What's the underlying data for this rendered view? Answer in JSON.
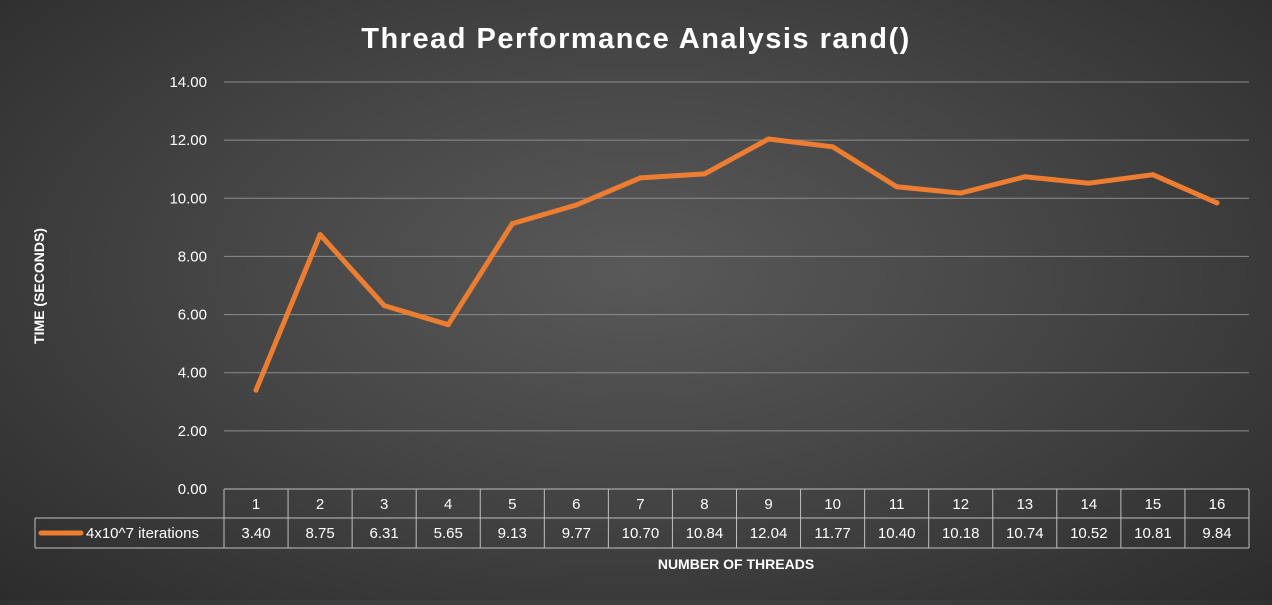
{
  "chart_data": {
    "type": "line",
    "title": "Thread Performance Analysis rand()",
    "xlabel": "NUMBER OF THREADS",
    "ylabel": "TIME (SECONDS)",
    "categories": [
      "1",
      "2",
      "3",
      "4",
      "5",
      "6",
      "7",
      "8",
      "9",
      "10",
      "11",
      "12",
      "13",
      "14",
      "15",
      "16"
    ],
    "series": [
      {
        "name": "4x10^7 iterations",
        "values": [
          3.4,
          8.75,
          6.31,
          5.65,
          9.13,
          9.77,
          10.7,
          10.84,
          12.04,
          11.77,
          10.4,
          10.18,
          10.74,
          10.52,
          10.81,
          9.84
        ],
        "labels": [
          "3.40",
          "8.75",
          "6.31",
          "5.65",
          "9.13",
          "9.77",
          "10.70",
          "10.84",
          "12.04",
          "11.77",
          "10.40",
          "10.18",
          "10.74",
          "10.52",
          "10.81",
          "9.84"
        ],
        "color": "#ED7D31"
      }
    ],
    "ylim": [
      0,
      14
    ],
    "yticks": [
      "0.00",
      "2.00",
      "4.00",
      "6.00",
      "8.00",
      "10.00",
      "12.00",
      "14.00"
    ],
    "grid": true,
    "legend": "data-table",
    "colors": {
      "gridline": "#8c8c8c",
      "text": "#ffffff",
      "table_border": "#bfbfbf"
    }
  }
}
